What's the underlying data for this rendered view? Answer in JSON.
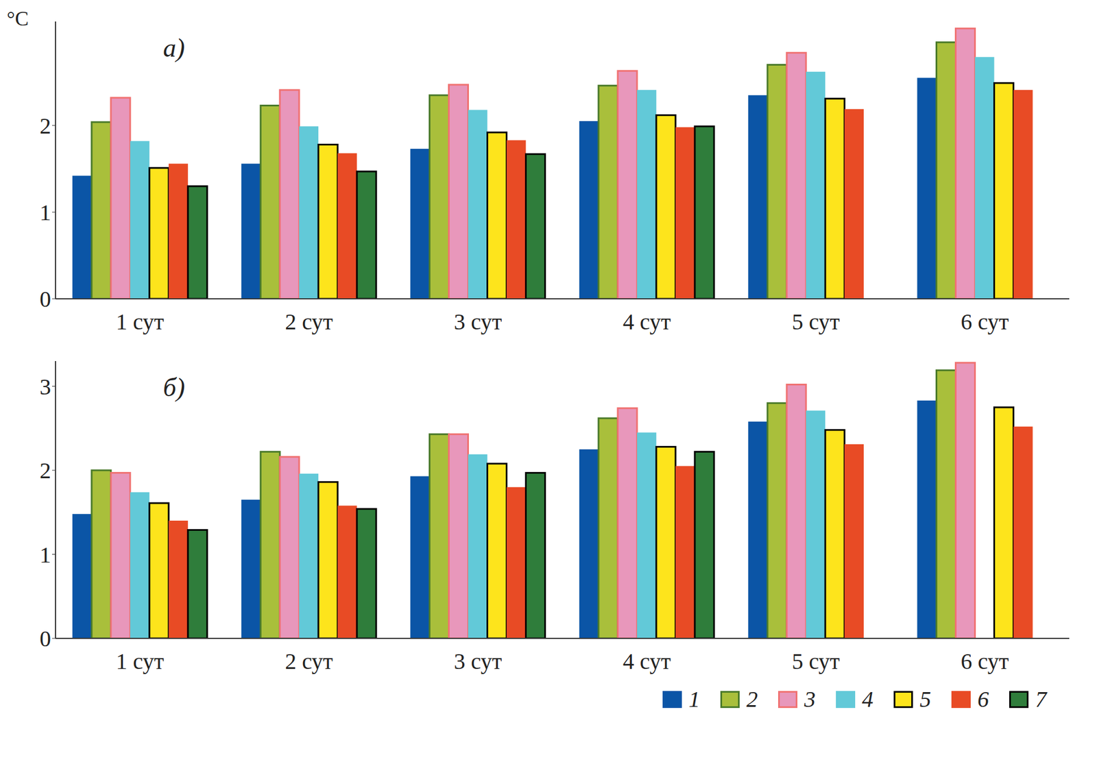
{
  "chart_data": [
    {
      "type": "bar",
      "title": "а)",
      "y_label": "°C",
      "categories": [
        "1 сут",
        "2 сут",
        "3 сут",
        "4 сут",
        "5 сут",
        "6 сут"
      ],
      "ylim": [
        0,
        3.2
      ],
      "yticks": [
        0,
        1,
        2
      ],
      "grid": false,
      "series": [
        {
          "name": "1",
          "color": "#0b55a6",
          "values": [
            1.42,
            1.56,
            1.73,
            2.05,
            2.35,
            2.55
          ]
        },
        {
          "name": "2",
          "color": "#a9bf3b",
          "values": [
            2.04,
            2.23,
            2.35,
            2.46,
            2.7,
            2.96
          ]
        },
        {
          "name": "3",
          "color": "#e897bb",
          "values": [
            2.32,
            2.41,
            2.47,
            2.63,
            2.84,
            3.12
          ]
        },
        {
          "name": "4",
          "color": "#62c9d8",
          "values": [
            1.82,
            1.99,
            2.18,
            2.41,
            2.62,
            2.79
          ]
        },
        {
          "name": "5",
          "color": "#fde41c",
          "values": [
            1.51,
            1.78,
            1.92,
            2.12,
            2.31,
            2.49
          ]
        },
        {
          "name": "6",
          "color": "#e84b25",
          "values": [
            1.56,
            1.68,
            1.83,
            1.98,
            2.19,
            2.41
          ]
        },
        {
          "name": "7",
          "color": "#2f7d3b",
          "values": [
            1.3,
            1.47,
            1.67,
            1.99,
            null,
            null
          ]
        }
      ]
    },
    {
      "type": "bar",
      "title": "б)",
      "categories": [
        "1 сут",
        "2 сут",
        "3 сут",
        "4 сут",
        "5 сут",
        "6 сут"
      ],
      "ylim": [
        0,
        3.3
      ],
      "yticks": [
        0,
        1,
        2,
        3
      ],
      "grid": false,
      "legend": "bottom right",
      "series": [
        {
          "name": "1",
          "color": "#0b55a6",
          "values": [
            1.48,
            1.65,
            1.93,
            2.25,
            2.58,
            2.83
          ]
        },
        {
          "name": "2",
          "color": "#a9bf3b",
          "values": [
            2.0,
            2.22,
            2.43,
            2.62,
            2.8,
            3.19
          ]
        },
        {
          "name": "3",
          "color": "#e897bb",
          "values": [
            1.97,
            2.16,
            2.43,
            2.74,
            3.02,
            3.28
          ]
        },
        {
          "name": "4",
          "color": "#62c9d8",
          "values": [
            1.74,
            1.96,
            2.19,
            2.45,
            2.71,
            null
          ]
        },
        {
          "name": "5",
          "color": "#fde41c",
          "values": [
            1.61,
            1.86,
            2.08,
            2.28,
            2.48,
            2.75
          ]
        },
        {
          "name": "6",
          "color": "#e84b25",
          "values": [
            1.4,
            1.58,
            1.8,
            2.05,
            2.31,
            2.52
          ]
        },
        {
          "name": "7",
          "color": "#2f7d3b",
          "values": [
            1.29,
            1.54,
            1.97,
            2.22,
            null,
            null
          ]
        }
      ]
    }
  ]
}
